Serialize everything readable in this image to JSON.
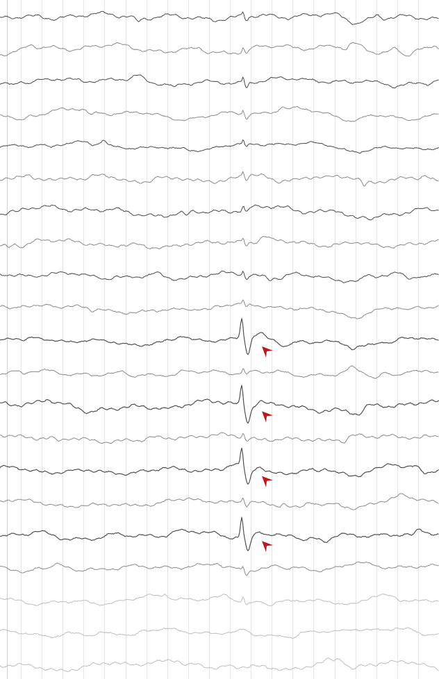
{
  "recording": {
    "channel_count": 21,
    "grid_divisions": 21,
    "spike_channels": [
      10,
      12,
      14,
      16
    ],
    "arrow_channels": [
      10,
      12,
      14,
      16
    ],
    "colors": {
      "background": "#ffffff",
      "grid_line": "#e6e6e6",
      "trace_dark": "#4a4a4a",
      "trace_medium": "#8a8a8a",
      "trace_light": "#bdbdbd",
      "arrow": "#c0171d"
    },
    "icons": {
      "spike_marker": "arrowhead-icon"
    }
  }
}
